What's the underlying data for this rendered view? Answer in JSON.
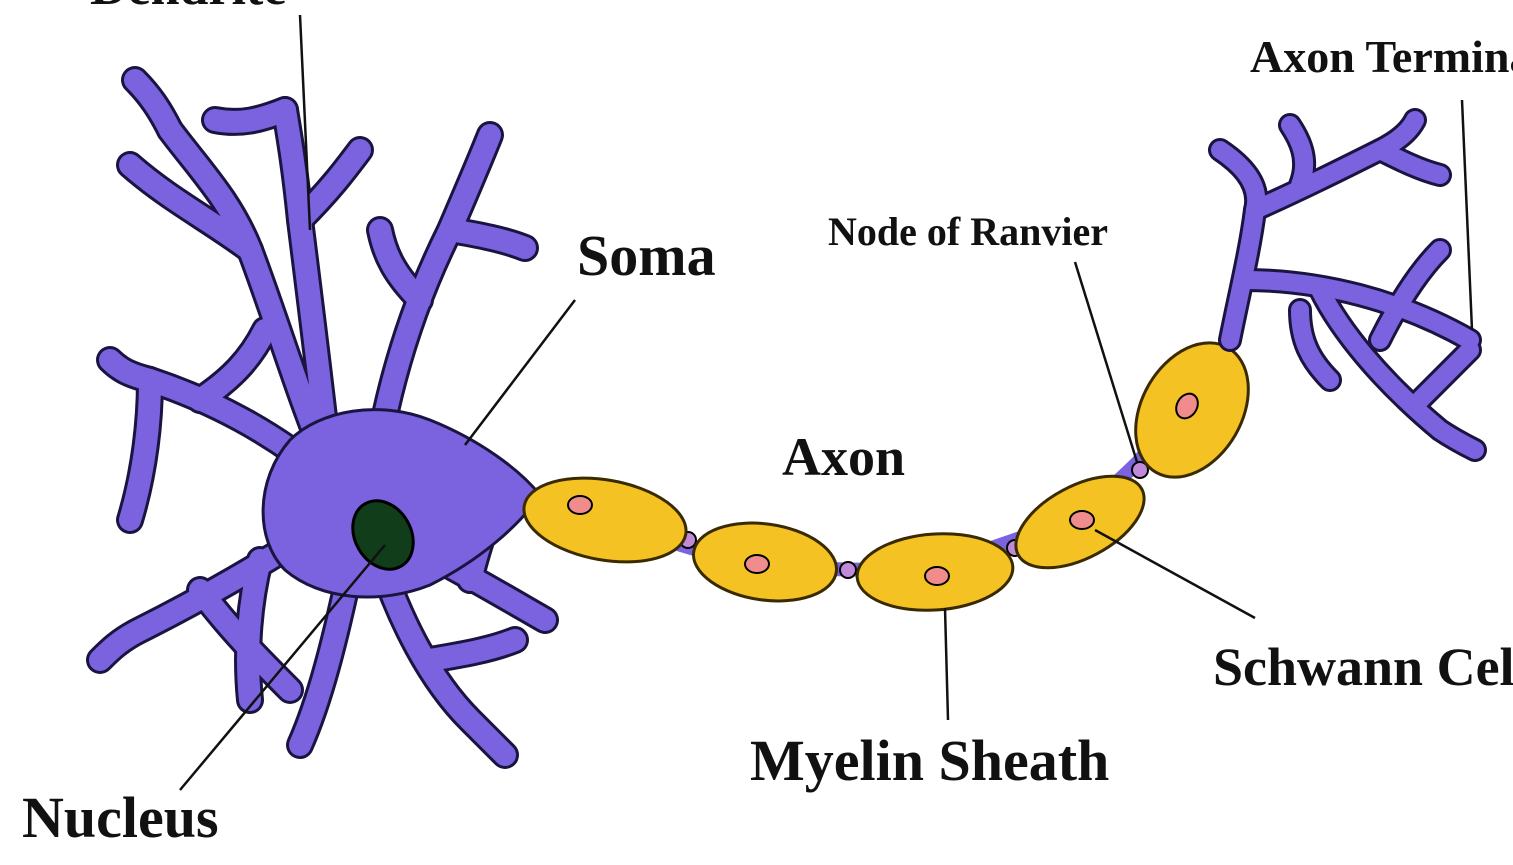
{
  "labels": {
    "dendrite": "Dendrite",
    "axon_terminal": "Axon Terminal",
    "soma": "Soma",
    "node_of_ranvier": "Node of Ranvier",
    "axon": "Axon",
    "schwann_cell": "Schwann Cell",
    "myelin_sheath": "Myelin Sheath",
    "nucleus": "Nucleus"
  },
  "colors": {
    "neuron": "#7b63e0",
    "neuron_outline": "#1a1440",
    "myelin": "#f5c224",
    "myelin_outline": "#3a2a00",
    "schwann_nucleus": "#f08c8c",
    "cell_nucleus": "#123d1a",
    "node": "#c08ad8",
    "leader_line": "#111111"
  }
}
